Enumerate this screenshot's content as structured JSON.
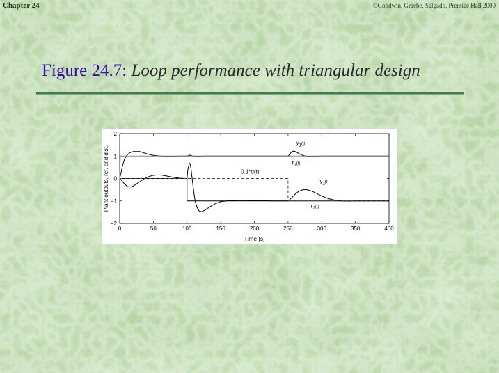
{
  "header": {
    "chapter": "Chapter 24",
    "copyright": "©Goodwin, Graebe, Salgado, Prentice Hall 2000"
  },
  "slide": {
    "figure_label": "Figure 24.7:",
    "caption": " Loop performance with triangular design"
  },
  "colors": {
    "background": "#b9d6a6",
    "figure_label": "#3b0ea6",
    "rule": "#3f7a4a",
    "plot_line": "#000000",
    "reference_line": "#888888"
  },
  "chart_data": {
    "type": "line",
    "xlabel": "Time [s]",
    "ylabel": "Plant outputs, ref. and dist.",
    "xlim": [
      0,
      400
    ],
    "ylim": [
      -2,
      2
    ],
    "xticks": [
      0,
      50,
      100,
      150,
      200,
      250,
      300,
      350,
      400
    ],
    "yticks": [
      -2,
      -1,
      0,
      1,
      2
    ],
    "xtick_labels": [
      "0",
      "50",
      "100",
      "150",
      "200",
      "250",
      "300",
      "350",
      "400"
    ],
    "ytick_labels": [
      "−2",
      "−1",
      "0",
      "1",
      "2"
    ],
    "grid": false,
    "series": [
      {
        "name": "y1(t)",
        "style": "solid",
        "x": [
          0,
          2,
          4,
          7,
          10,
          15,
          20,
          30,
          40,
          50,
          60,
          70,
          80,
          90,
          100,
          102,
          104,
          106,
          108,
          112,
          118,
          125,
          135,
          150,
          175,
          200,
          230,
          250,
          252,
          254,
          256,
          258,
          260,
          264,
          268,
          272,
          276,
          280,
          290,
          300,
          320,
          350,
          400
        ],
        "y": [
          0,
          0.25,
          0.55,
          0.85,
          1.02,
          1.15,
          1.2,
          1.2,
          1.1,
          1.03,
          1.0,
          0.99,
          0.99,
          1.0,
          1.0,
          1.02,
          1.04,
          1.03,
          1.0,
          0.98,
          0.99,
          1.0,
          1.0,
          1.0,
          1.0,
          1.0,
          1.0,
          1.0,
          1.06,
          1.14,
          1.2,
          1.22,
          1.21,
          1.15,
          1.08,
          1.03,
          1.0,
          0.99,
          0.99,
          1.0,
          1.0,
          1.0,
          1.0
        ]
      },
      {
        "name": "y2(t)",
        "style": "solid",
        "x": [
          0,
          4,
          8,
          12,
          16,
          20,
          24,
          30,
          36,
          42,
          48,
          55,
          62,
          70,
          80,
          90,
          100,
          101,
          103,
          104,
          105,
          106,
          108,
          110,
          112,
          115,
          118,
          122,
          126,
          132,
          140,
          150,
          165,
          180,
          200,
          230,
          250,
          254,
          258,
          262,
          266,
          272,
          278,
          284,
          290,
          300,
          310,
          320,
          330,
          340,
          350,
          400
        ],
        "y": [
          0,
          -0.13,
          -0.27,
          -0.36,
          -0.38,
          -0.34,
          -0.26,
          -0.14,
          -0.02,
          0.07,
          0.13,
          0.16,
          0.15,
          0.11,
          0.05,
          0.01,
          0.0,
          0.35,
          0.65,
          0.68,
          0.6,
          0.4,
          -0.1,
          -0.6,
          -1.0,
          -1.3,
          -1.45,
          -1.48,
          -1.42,
          -1.3,
          -1.15,
          -1.03,
          -0.98,
          -0.97,
          -0.98,
          -1.0,
          -1.0,
          -0.9,
          -0.78,
          -0.66,
          -0.57,
          -0.5,
          -0.5,
          -0.55,
          -0.63,
          -0.78,
          -0.9,
          -0.97,
          -1.0,
          -1.01,
          -1.0,
          -1.0
        ]
      },
      {
        "name": "r1(t)",
        "style": "solid-grey",
        "x": [
          0,
          1,
          400
        ],
        "y": [
          0,
          1,
          1
        ]
      },
      {
        "name": "r2(t)",
        "style": "solid",
        "x": [
          0,
          100,
          100,
          250,
          250,
          400
        ],
        "y": [
          0,
          0,
          -1,
          -1,
          -1,
          -1
        ]
      },
      {
        "name": "0.1*d(t)",
        "style": "dashed",
        "x": [
          0,
          250,
          250,
          400
        ],
        "y": [
          0,
          0,
          -1,
          -1
        ]
      }
    ],
    "annotations": [
      {
        "base": "y",
        "sub": "1",
        "arg": "(t)",
        "x": 262,
        "y": 1.5
      },
      {
        "base": "r",
        "sub": "1",
        "arg": "(t)",
        "x": 256,
        "y": 0.62
      },
      {
        "base": "0.1*d(t)",
        "sub": "",
        "arg": "",
        "x": 180,
        "y": 0.22
      },
      {
        "base": "y",
        "sub": "2",
        "arg": "(t)",
        "x": 297,
        "y": -0.2
      },
      {
        "base": "r",
        "sub": "2",
        "arg": "(t)",
        "x": 284,
        "y": -1.3
      }
    ]
  }
}
